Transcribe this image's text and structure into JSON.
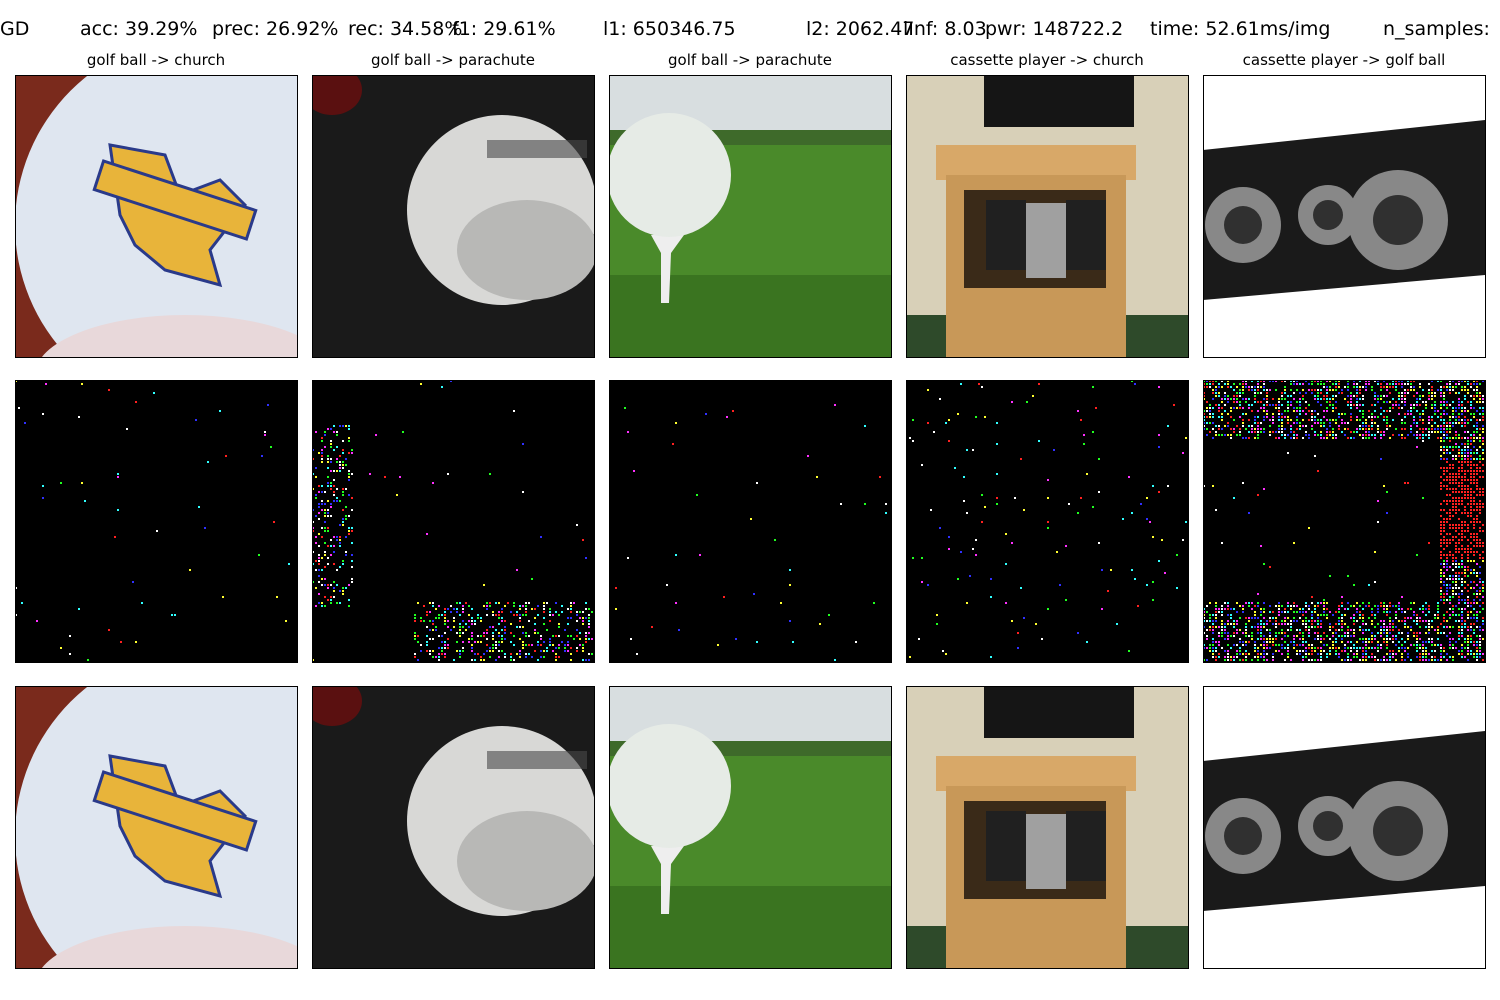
{
  "header": {
    "metrics": [
      "GD",
      "acc: 39.29%",
      "prec: 26.92%",
      "rec: 34.58%",
      "f1: 29.61%",
      "l1: 650346.75",
      "l2: 2062.47",
      "lInf: 8.03",
      "pwr: 148722.2",
      "time: 52.61ms/img",
      "n_samples:"
    ]
  },
  "columns": [
    {
      "title": "golf ball -> church"
    },
    {
      "title": "golf ball -> parachute"
    },
    {
      "title": "golf ball -> parachute"
    },
    {
      "title": "cassette player -> church"
    },
    {
      "title": "cassette player -> golf ball"
    }
  ]
}
